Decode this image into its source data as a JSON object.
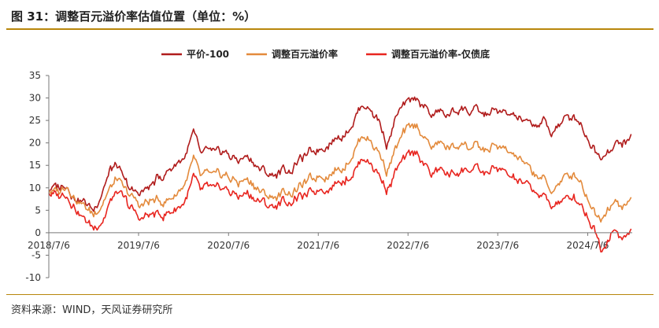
{
  "figure": {
    "title": "图 31：调整百元溢价率估值位置（单位：%）",
    "source": "资料来源：WIND，天风证券研究所"
  },
  "chart_data": {
    "type": "line",
    "x_start": "2018/7/6",
    "x_end": "2025/1/3",
    "x_tick_labels": [
      "2018/7/6",
      "2019/7/6",
      "2020/7/6",
      "2021/7/6",
      "2022/7/6",
      "2023/7/6",
      "2024/7/6"
    ],
    "y_ticks": [
      35,
      30,
      25,
      20,
      15,
      10,
      5,
      0,
      -5,
      -10
    ],
    "ylim": [
      -10,
      35
    ],
    "legend_position": "top-center",
    "series": [
      {
        "name": "平价-100",
        "color": "#b01c1c",
        "points": [
          [
            "2018/7/6",
            10
          ],
          [
            "2018/8/15",
            10
          ],
          [
            "2018/9/15",
            11
          ],
          [
            "2018/10/20",
            8
          ],
          [
            "2018/11/25",
            7
          ],
          [
            "2019/1/4",
            5
          ],
          [
            "2019/2/10",
            10
          ],
          [
            "2019/3/15",
            14
          ],
          [
            "2019/4/10",
            15
          ],
          [
            "2019/5/10",
            11
          ],
          [
            "2019/6/10",
            9
          ],
          [
            "2019/7/15",
            9
          ],
          [
            "2019/8/20",
            10
          ],
          [
            "2019/9/20",
            12
          ],
          [
            "2019/10/20",
            13
          ],
          [
            "2019/11/25",
            15
          ],
          [
            "2020/1/10",
            17
          ],
          [
            "2020/2/15",
            22
          ],
          [
            "2020/3/15",
            17
          ],
          [
            "2020/4/15",
            18
          ],
          [
            "2020/5/15",
            17
          ],
          [
            "2020/6/15",
            18
          ],
          [
            "2020/7/15",
            17
          ],
          [
            "2020/8/15",
            16
          ],
          [
            "2020/9/15",
            17
          ],
          [
            "2020/10/15",
            16
          ],
          [
            "2020/11/15",
            14
          ],
          [
            "2020/12/15",
            13
          ],
          [
            "2021/1/15",
            13
          ],
          [
            "2021/2/15",
            14
          ],
          [
            "2021/3/15",
            14
          ],
          [
            "2021/4/15",
            16
          ],
          [
            "2021/5/15",
            17
          ],
          [
            "2021/6/15",
            18
          ],
          [
            "2021/7/15",
            19
          ],
          [
            "2021/8/15",
            20
          ],
          [
            "2021/9/15",
            21
          ],
          [
            "2021/10/15",
            22
          ],
          [
            "2021/11/15",
            24
          ],
          [
            "2021/12/15",
            27
          ],
          [
            "2022/1/10",
            29
          ],
          [
            "2022/2/10",
            27
          ],
          [
            "2022/3/10",
            25
          ],
          [
            "2022/4/10",
            20
          ],
          [
            "2022/4/28",
            22
          ],
          [
            "2022/5/20",
            26
          ],
          [
            "2022/6/20",
            28
          ],
          [
            "2022/7/15",
            29
          ],
          [
            "2022/8/15",
            30
          ],
          [
            "2022/9/10",
            28
          ],
          [
            "2022/10/10",
            26
          ],
          [
            "2022/11/10",
            27
          ],
          [
            "2022/12/10",
            26
          ],
          [
            "2023/1/10",
            27
          ],
          [
            "2023/2/10",
            28
          ],
          [
            "2023/3/10",
            27
          ],
          [
            "2023/4/10",
            27
          ],
          [
            "2023/5/10",
            26
          ],
          [
            "2023/6/10",
            27
          ],
          [
            "2023/7/10",
            27
          ],
          [
            "2023/8/10",
            26
          ],
          [
            "2023/9/10",
            26
          ],
          [
            "2023/10/10",
            25
          ],
          [
            "2023/11/10",
            24
          ],
          [
            "2023/12/10",
            24
          ],
          [
            "2024/1/10",
            25
          ],
          [
            "2024/2/5",
            22
          ],
          [
            "2024/3/5",
            24
          ],
          [
            "2024/4/5",
            25
          ],
          [
            "2024/5/5",
            26
          ],
          [
            "2024/6/5",
            25
          ],
          [
            "2024/7/5",
            21
          ],
          [
            "2024/7/25",
            20
          ],
          [
            "2024/8/10",
            18
          ],
          [
            "2024/9/1",
            17
          ],
          [
            "2024/9/25",
            19
          ],
          [
            "2024/10/15",
            19
          ],
          [
            "2024/11/10",
            20
          ],
          [
            "2024/12/10",
            20
          ],
          [
            "2025/1/3",
            21.5
          ]
        ]
      },
      {
        "name": "调整百元溢价率",
        "color": "#e38a3c",
        "points": [
          [
            "2018/7/6",
            9.5
          ],
          [
            "2018/8/15",
            9
          ],
          [
            "2018/9/15",
            11
          ],
          [
            "2018/10/20",
            8
          ],
          [
            "2018/11/25",
            6
          ],
          [
            "2019/1/4",
            4
          ],
          [
            "2019/2/10",
            7
          ],
          [
            "2019/3/15",
            10
          ],
          [
            "2019/4/10",
            12
          ],
          [
            "2019/5/10",
            9
          ],
          [
            "2019/6/10",
            8
          ],
          [
            "2019/7/15",
            6
          ],
          [
            "2019/8/20",
            7
          ],
          [
            "2019/9/20",
            7
          ],
          [
            "2019/10/20",
            7
          ],
          [
            "2019/11/25",
            8
          ],
          [
            "2020/1/10",
            11
          ],
          [
            "2020/2/15",
            16
          ],
          [
            "2020/3/15",
            12
          ],
          [
            "2020/4/15",
            13
          ],
          [
            "2020/5/15",
            12
          ],
          [
            "2020/6/15",
            13
          ],
          [
            "2020/7/15",
            12
          ],
          [
            "2020/8/15",
            11
          ],
          [
            "2020/9/15",
            12
          ],
          [
            "2020/10/15",
            11
          ],
          [
            "2020/11/15",
            9
          ],
          [
            "2020/12/15",
            8
          ],
          [
            "2021/1/15",
            8
          ],
          [
            "2021/2/15",
            9
          ],
          [
            "2021/3/15",
            9
          ],
          [
            "2021/4/15",
            10
          ],
          [
            "2021/5/15",
            11
          ],
          [
            "2021/6/15",
            12
          ],
          [
            "2021/7/15",
            13
          ],
          [
            "2021/8/15",
            13
          ],
          [
            "2021/9/15",
            14
          ],
          [
            "2021/10/15",
            15
          ],
          [
            "2021/11/15",
            17
          ],
          [
            "2021/12/15",
            20
          ],
          [
            "2022/1/10",
            22
          ],
          [
            "2022/2/10",
            20
          ],
          [
            "2022/3/10",
            18
          ],
          [
            "2022/4/10",
            14
          ],
          [
            "2022/4/28",
            16
          ],
          [
            "2022/5/20",
            19
          ],
          [
            "2022/6/20",
            22
          ],
          [
            "2022/7/15",
            23
          ],
          [
            "2022/8/15",
            24
          ],
          [
            "2022/9/10",
            21
          ],
          [
            "2022/10/10",
            19
          ],
          [
            "2022/11/10",
            20
          ],
          [
            "2022/12/10",
            19
          ],
          [
            "2023/1/10",
            19
          ],
          [
            "2023/2/10",
            20
          ],
          [
            "2023/3/10",
            19
          ],
          [
            "2023/4/10",
            19
          ],
          [
            "2023/5/10",
            18
          ],
          [
            "2023/6/10",
            19
          ],
          [
            "2023/7/10",
            19
          ],
          [
            "2023/8/10",
            18
          ],
          [
            "2023/9/10",
            17
          ],
          [
            "2023/10/10",
            16
          ],
          [
            "2023/11/10",
            14
          ],
          [
            "2023/12/10",
            13
          ],
          [
            "2024/1/10",
            12
          ],
          [
            "2024/2/5",
            9
          ],
          [
            "2024/3/5",
            11
          ],
          [
            "2024/4/5",
            12
          ],
          [
            "2024/5/5",
            13
          ],
          [
            "2024/6/5",
            12
          ],
          [
            "2024/7/5",
            8
          ],
          [
            "2024/7/25",
            6
          ],
          [
            "2024/8/10",
            4
          ],
          [
            "2024/9/1",
            3.5
          ],
          [
            "2024/9/25",
            6
          ],
          [
            "2024/10/15",
            7
          ],
          [
            "2024/11/10",
            6
          ],
          [
            "2024/12/10",
            6
          ],
          [
            "2025/1/3",
            8
          ]
        ]
      },
      {
        "name": "调整百元溢价率-仅债底",
        "color": "#e8251f",
        "points": [
          [
            "2018/7/6",
            9
          ],
          [
            "2018/8/15",
            8
          ],
          [
            "2018/9/15",
            9
          ],
          [
            "2018/10/20",
            6
          ],
          [
            "2018/11/25",
            3
          ],
          [
            "2019/1/4",
            1
          ],
          [
            "2019/2/10",
            3
          ],
          [
            "2019/3/15",
            7
          ],
          [
            "2019/4/10",
            9
          ],
          [
            "2019/5/10",
            7
          ],
          [
            "2019/6/10",
            5
          ],
          [
            "2019/7/15",
            3
          ],
          [
            "2019/8/20",
            4
          ],
          [
            "2019/9/20",
            4
          ],
          [
            "2019/10/20",
            4
          ],
          [
            "2019/11/25",
            5
          ],
          [
            "2020/1/10",
            7
          ],
          [
            "2020/2/15",
            12
          ],
          [
            "2020/3/15",
            9
          ],
          [
            "2020/4/15",
            10
          ],
          [
            "2020/5/15",
            9
          ],
          [
            "2020/6/15",
            10
          ],
          [
            "2020/7/15",
            9
          ],
          [
            "2020/8/15",
            8
          ],
          [
            "2020/9/15",
            9
          ],
          [
            "2020/10/15",
            8
          ],
          [
            "2020/11/15",
            7
          ],
          [
            "2020/12/15",
            6
          ],
          [
            "2021/1/15",
            6
          ],
          [
            "2021/2/15",
            7
          ],
          [
            "2021/3/15",
            7
          ],
          [
            "2021/4/15",
            8
          ],
          [
            "2021/5/15",
            8
          ],
          [
            "2021/6/15",
            9
          ],
          [
            "2021/7/15",
            10
          ],
          [
            "2021/8/15",
            10
          ],
          [
            "2021/9/15",
            11
          ],
          [
            "2021/10/15",
            12
          ],
          [
            "2021/11/15",
            13
          ],
          [
            "2021/12/15",
            15
          ],
          [
            "2022/1/10",
            17
          ],
          [
            "2022/2/10",
            15
          ],
          [
            "2022/3/10",
            13
          ],
          [
            "2022/4/10",
            10
          ],
          [
            "2022/4/28",
            11
          ],
          [
            "2022/5/20",
            14
          ],
          [
            "2022/6/20",
            16
          ],
          [
            "2022/7/15",
            17
          ],
          [
            "2022/8/15",
            18
          ],
          [
            "2022/9/10",
            15
          ],
          [
            "2022/10/10",
            13
          ],
          [
            "2022/11/10",
            14
          ],
          [
            "2022/12/10",
            13
          ],
          [
            "2023/1/10",
            13
          ],
          [
            "2023/2/10",
            14
          ],
          [
            "2023/3/10",
            14
          ],
          [
            "2023/4/10",
            14
          ],
          [
            "2023/5/10",
            13
          ],
          [
            "2023/6/10",
            14
          ],
          [
            "2023/7/10",
            14
          ],
          [
            "2023/8/10",
            13
          ],
          [
            "2023/9/10",
            12
          ],
          [
            "2023/10/10",
            11
          ],
          [
            "2023/11/10",
            10
          ],
          [
            "2023/12/10",
            9
          ],
          [
            "2024/1/10",
            8
          ],
          [
            "2024/2/5",
            6
          ],
          [
            "2024/3/5",
            7
          ],
          [
            "2024/4/5",
            7
          ],
          [
            "2024/5/5",
            8
          ],
          [
            "2024/6/5",
            7
          ],
          [
            "2024/7/5",
            4
          ],
          [
            "2024/7/25",
            2
          ],
          [
            "2024/8/10",
            0
          ],
          [
            "2024/9/1",
            -4
          ],
          [
            "2024/9/25",
            -1
          ],
          [
            "2024/10/15",
            1
          ],
          [
            "2024/11/10",
            -1
          ],
          [
            "2024/12/10",
            -1
          ],
          [
            "2025/1/3",
            0.5
          ]
        ]
      }
    ]
  }
}
